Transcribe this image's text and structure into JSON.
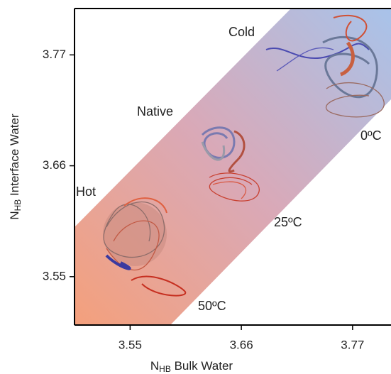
{
  "chart_data": {
    "type": "band",
    "x_label": {
      "symbol": "N",
      "subscript": "HB",
      "text": "Bulk Water"
    },
    "y_label": {
      "symbol": "N",
      "subscript": "HB",
      "text": "Interface Water"
    },
    "xlim": [
      3.495,
      3.808
    ],
    "xticks": [
      3.55,
      3.66,
      3.77
    ],
    "ylim": [
      3.502,
      3.816
    ],
    "yticks": [
      3.55,
      3.66,
      3.77
    ],
    "annotations": [
      "Cold",
      "Native",
      "Hot",
      "0ºC",
      "25ºC",
      "50ºC"
    ],
    "colors": {
      "hot": "#f4a07c",
      "cold": "#a8c3ea"
    }
  }
}
